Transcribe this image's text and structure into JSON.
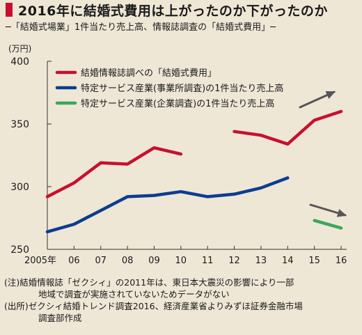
{
  "header": {
    "title": "2016年に結婚式費用は上がったのか下がったのか",
    "subtitle": "─「結婚式場業」1件当たり売上高、情報誌調査の「結婚式費用」─"
  },
  "notes": {
    "note1_line1": "(注)結婚情報誌「ゼクシィ」の2011年は、東日本大震災の影響により一部",
    "note1_line2": "地域で調査が実施されていないためデータがない",
    "note2_line1": "(出所)ゼクシィ結婚トレンド調査2016、経済産業省よりみずほ証券金融市場",
    "note2_line2": "調査部作成"
  },
  "colors": {
    "red": "#c8102e",
    "blue": "#0b3d91",
    "green": "#3aa85a",
    "arrow": "#555555",
    "background": "#efe7d6"
  },
  "chart_data": {
    "type": "line",
    "ylabel": "(万円)",
    "ylim": [
      250,
      400
    ],
    "yticks": [
      250,
      300,
      350,
      400
    ],
    "categories": [
      "2005年",
      "06",
      "07",
      "08",
      "09",
      "10",
      "11",
      "12",
      "13",
      "14",
      "15",
      "16"
    ],
    "grid": false,
    "legend_position": "top-left",
    "series": [
      {
        "name": "結婚情報誌調べの「結婚式費用」",
        "color": "#c8102e",
        "values": [
          292,
          303,
          319,
          318,
          331,
          326,
          null,
          344,
          341,
          334,
          353,
          360
        ]
      },
      {
        "name": "特定サービス産業(事業所調査)の1件当たり売上高",
        "color": "#0b3d91",
        "values": [
          264,
          270,
          281,
          292,
          293,
          296,
          292,
          294,
          299,
          307,
          null,
          null
        ]
      },
      {
        "name": "特定サービス産業(企業調査)の1件当たり売上高",
        "color": "#3aa85a",
        "values": [
          null,
          null,
          null,
          null,
          null,
          null,
          null,
          null,
          null,
          null,
          273,
          267
        ]
      }
    ],
    "annotations": [
      {
        "type": "arrow",
        "direction": "up",
        "near_series": "結婚情報誌調べの「結婚式費用」"
      },
      {
        "type": "arrow",
        "direction": "down",
        "near_series": "特定サービス産業(企業調査)の1件当たり売上高"
      }
    ]
  }
}
